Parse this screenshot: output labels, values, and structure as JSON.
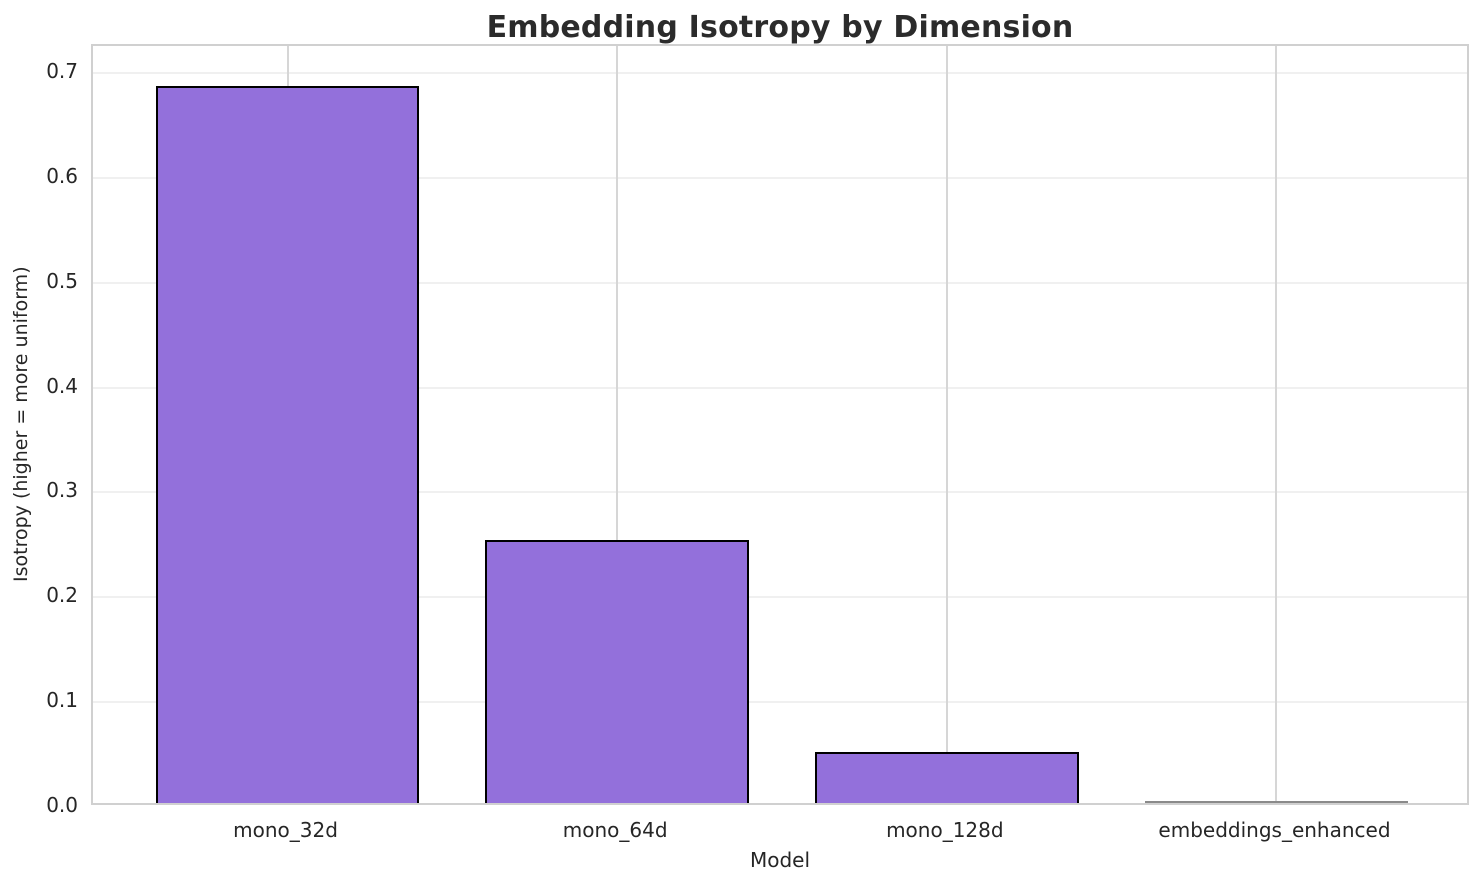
{
  "chart_data": {
    "type": "bar",
    "title": "Embedding Isotropy by Dimension",
    "xlabel": "Model",
    "ylabel": "Isotropy (higher = more uniform)",
    "categories": [
      "mono_32d",
      "mono_64d",
      "mono_128d",
      "embeddings_enhanced"
    ],
    "values": [
      0.684,
      0.251,
      0.049,
      0.0
    ],
    "ylim": [
      0,
      0.7257
    ],
    "yticks": [
      0.0,
      0.1,
      0.2,
      0.3,
      0.4,
      0.5,
      0.6,
      0.7
    ],
    "ytick_labels": [
      "0.0",
      "0.1",
      "0.2",
      "0.3",
      "0.4",
      "0.5",
      "0.6",
      "0.7"
    ],
    "grid": true,
    "legend": "none",
    "bar_color": "#9370DB",
    "bar_edge_color": "#000000",
    "hgrid_color": "#f0f0f0",
    "vgrid_color": "#d6d6d6",
    "spine_color": "#d0d0d0",
    "text_color": "#262626",
    "title_color": "#2b2b2b",
    "background_color": "#ffffff"
  }
}
